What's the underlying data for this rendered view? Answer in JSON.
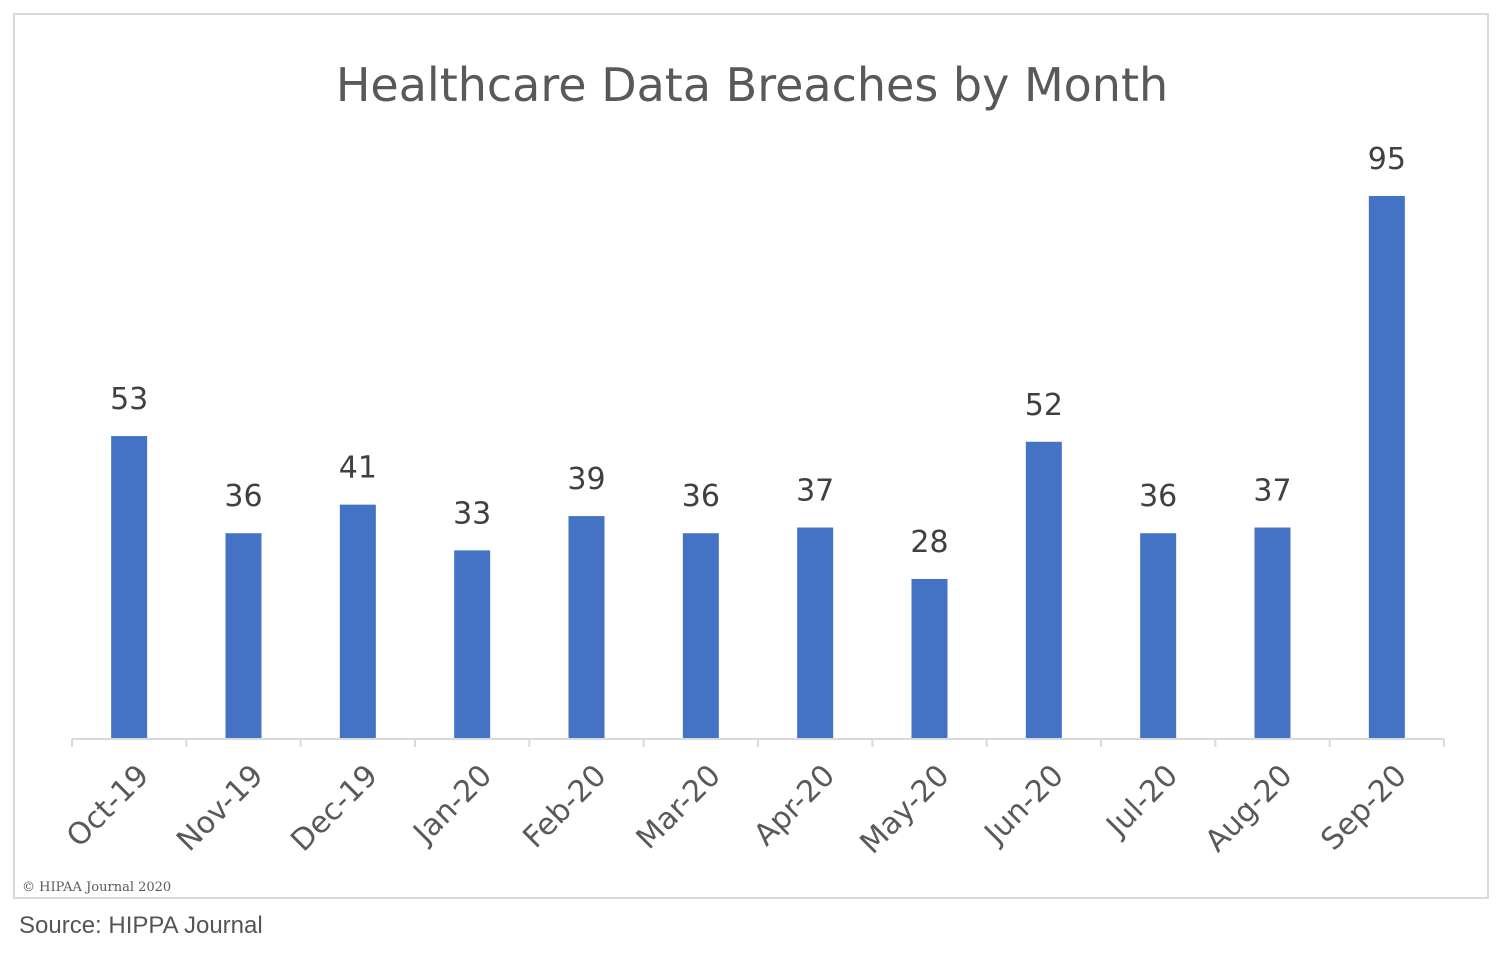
{
  "chart_data": {
    "type": "bar",
    "title": "Healthcare Data Breaches by Month",
    "categories": [
      "Oct-19",
      "Nov-19",
      "Dec-19",
      "Jan-20",
      "Feb-20",
      "Mar-20",
      "Apr-20",
      "May-20",
      "Jun-20",
      "Jul-20",
      "Aug-20",
      "Sep-20"
    ],
    "values": [
      53,
      36,
      41,
      33,
      39,
      36,
      37,
      28,
      52,
      36,
      37,
      95
    ],
    "xlabel": "",
    "ylabel": "",
    "ylim": [
      0,
      95
    ],
    "grid": false,
    "legend": "none",
    "bar_color": "#4472c4",
    "axis_color": "#d9d9d9"
  },
  "watermark": "© HIPAA Journal 2020",
  "caption": "Source: HIPPA Journal"
}
